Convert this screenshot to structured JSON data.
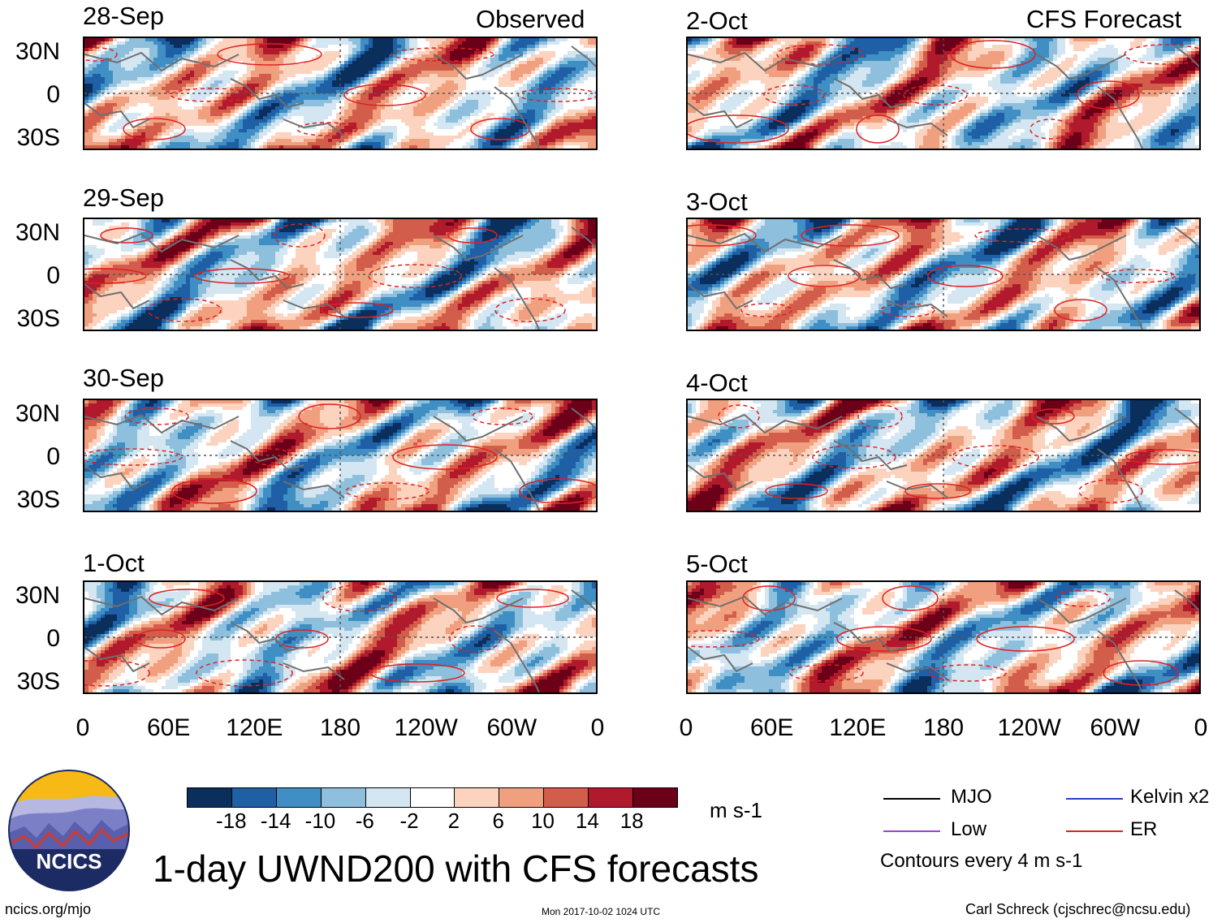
{
  "chart_data": {
    "type": "heatmap",
    "title": "1-day UWND200 with CFS forecasts",
    "variable": "UWND200",
    "units": "m s-1",
    "colorbar": {
      "ticks": [
        "-18",
        "-14",
        "-10",
        "-6",
        "-2",
        "2",
        "6",
        "10",
        "14",
        "18"
      ],
      "colors": [
        "#0a2f5c",
        "#1f5fa6",
        "#3f8ec4",
        "#8ec0dd",
        "#d3e6f1",
        "#ffffff",
        "#fbd3bf",
        "#f0a07e",
        "#d35d4b",
        "#b1192c",
        "#6b0018"
      ]
    },
    "x_axis": {
      "tick_labels": [
        "0",
        "60E",
        "120E",
        "180",
        "120W",
        "60W",
        "0"
      ]
    },
    "y_axis": {
      "tick_labels": [
        "30N",
        "0",
        "30S"
      ]
    },
    "columns": [
      {
        "header": "Observed",
        "panels": [
          {
            "date": "28-Sep"
          },
          {
            "date": "29-Sep"
          },
          {
            "date": "30-Sep"
          },
          {
            "date": "1-Oct"
          }
        ]
      },
      {
        "header": "CFS Forecast",
        "panels": [
          {
            "date": "2-Oct"
          },
          {
            "date": "3-Oct"
          },
          {
            "date": "4-Oct"
          },
          {
            "date": "5-Oct"
          }
        ]
      }
    ],
    "legend": {
      "items": [
        {
          "label": "MJO",
          "color": "#000000"
        },
        {
          "label": "Kelvin x2",
          "color": "#2a3fcc"
        },
        {
          "label": "Low",
          "color": "#a040e0"
        },
        {
          "label": "ER",
          "color": "#e02020"
        }
      ],
      "note": "Contours every 4 m s-1"
    }
  },
  "logo": {
    "text": "NCICS"
  },
  "footer": {
    "url": "ncics.org/mjo",
    "timestamp": "Mon 2017-10-02 1024 UTC",
    "credit": "Carl Schreck (cjschrec@ncsu.edu)"
  }
}
